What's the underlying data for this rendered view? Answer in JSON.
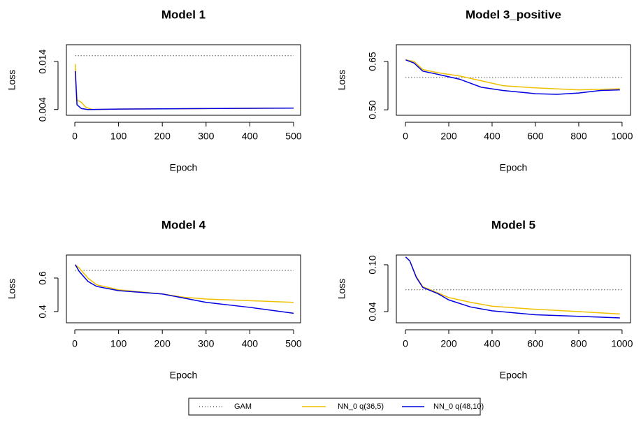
{
  "chart_data": [
    {
      "type": "line",
      "title": "Model 1",
      "x_label": "Epoch",
      "y_label": "Loss",
      "xlim": [
        -19.2,
        516
      ],
      "xticks": [
        0,
        100,
        200,
        300,
        400,
        500
      ],
      "ylim": [
        0.0028,
        0.0175
      ],
      "yticks": [
        0.004,
        0.014
      ],
      "series": [
        {
          "name": "GAM",
          "color": "#000000",
          "linestyle": "dotted",
          "x": [
            1,
            500
          ],
          "values": [
            0.0152,
            0.0152
          ]
        },
        {
          "name": "NN_0 q(36,5)",
          "color": "#f0c000",
          "linestyle": "solid",
          "x": [
            1,
            5,
            15,
            25,
            40,
            100,
            300,
            500
          ],
          "values": [
            0.0135,
            0.006,
            0.0055,
            0.0045,
            0.004,
            0.0041,
            0.0042,
            0.0043
          ]
        },
        {
          "name": "NN_0 q(48,10)",
          "color": "#0000e0",
          "linestyle": "solid",
          "x": [
            1,
            5,
            15,
            30,
            100,
            500
          ],
          "values": [
            0.012,
            0.005,
            0.0042,
            0.004,
            0.0041,
            0.0043
          ]
        }
      ]
    },
    {
      "type": "line",
      "title": "Model 3_positive",
      "x_label": "Epoch",
      "y_label": "Loss",
      "xlim": [
        -42,
        1039
      ],
      "xticks": [
        0,
        200,
        400,
        600,
        800,
        1000
      ],
      "ylim": [
        0.483,
        0.702
      ],
      "yticks": [
        {
          "value": 0.5,
          "label": "0.50"
        },
        0.65
      ],
      "series": [
        {
          "name": "GAM",
          "color": "#000000",
          "linestyle": "dotted",
          "x": [
            1,
            1000
          ],
          "values": [
            0.6,
            0.6
          ]
        },
        {
          "name": "NN_0 q(36,5)",
          "color": "#f0c000",
          "linestyle": "solid",
          "x": [
            1,
            40,
            80,
            150,
            250,
            350,
            450,
            600,
            800,
            990
          ],
          "values": [
            0.655,
            0.65,
            0.625,
            0.615,
            0.605,
            0.59,
            0.575,
            0.568,
            0.562,
            0.565
          ]
        },
        {
          "name": "NN_0 q(48,10)",
          "color": "#0000e0",
          "linestyle": "solid",
          "x": [
            1,
            40,
            80,
            150,
            250,
            350,
            450,
            600,
            700,
            800,
            900,
            990
          ],
          "values": [
            0.655,
            0.645,
            0.62,
            0.61,
            0.595,
            0.57,
            0.56,
            0.55,
            0.548,
            0.552,
            0.56,
            0.562
          ]
        }
      ]
    },
    {
      "type": "line",
      "title": "Model 4",
      "x_label": "Epoch",
      "y_label": "Loss",
      "xlim": [
        -19.2,
        516
      ],
      "xticks": [
        0,
        100,
        200,
        300,
        400,
        500
      ],
      "ylim": [
        0.333,
        0.7375
      ],
      "yticks": [
        0.4,
        0.6
      ],
      "series": [
        {
          "name": "GAM",
          "color": "#000000",
          "linestyle": "dotted",
          "x": [
            1,
            500
          ],
          "values": [
            0.645,
            0.645
          ]
        },
        {
          "name": "NN_0 q(36,5)",
          "color": "#f0c000",
          "linestyle": "solid",
          "x": [
            1,
            10,
            30,
            50,
            100,
            200,
            250,
            300,
            400,
            500
          ],
          "values": [
            0.68,
            0.66,
            0.6,
            0.56,
            0.53,
            0.505,
            0.485,
            0.475,
            0.465,
            0.455
          ]
        },
        {
          "name": "NN_0 q(48,10)",
          "color": "#0000e0",
          "linestyle": "solid",
          "x": [
            1,
            10,
            30,
            50,
            100,
            200,
            250,
            300,
            400,
            500
          ],
          "values": [
            0.68,
            0.64,
            0.58,
            0.55,
            0.525,
            0.505,
            0.48,
            0.455,
            0.425,
            0.39
          ]
        }
      ]
    },
    {
      "type": "line",
      "title": "Model 5",
      "x_label": "Epoch",
      "y_label": "Loss",
      "xlim": [
        -42,
        1039
      ],
      "xticks": [
        0,
        200,
        400,
        600,
        800,
        1000
      ],
      "ylim": [
        0.0257,
        0.1125
      ],
      "yticks": [
        0.04,
        {
          "value": 0.1,
          "label": "0.10"
        }
      ],
      "series": [
        {
          "name": "GAM",
          "color": "#000000",
          "linestyle": "dotted",
          "x": [
            1,
            1000
          ],
          "values": [
            0.068,
            0.068
          ]
        },
        {
          "name": "NN_0 q(36,5)",
          "color": "#f0c000",
          "linestyle": "solid",
          "x": [
            1,
            20,
            50,
            80,
            150,
            200,
            300,
            400,
            600,
            800,
            990
          ],
          "values": [
            0.11,
            0.105,
            0.085,
            0.072,
            0.064,
            0.058,
            0.052,
            0.047,
            0.043,
            0.04,
            0.037
          ]
        },
        {
          "name": "NN_0 q(48,10)",
          "color": "#0000e0",
          "linestyle": "solid",
          "x": [
            1,
            20,
            50,
            80,
            150,
            200,
            300,
            400,
            600,
            800,
            990
          ],
          "values": [
            0.11,
            0.105,
            0.084,
            0.071,
            0.063,
            0.055,
            0.046,
            0.041,
            0.036,
            0.034,
            0.032
          ]
        }
      ]
    }
  ]
}
